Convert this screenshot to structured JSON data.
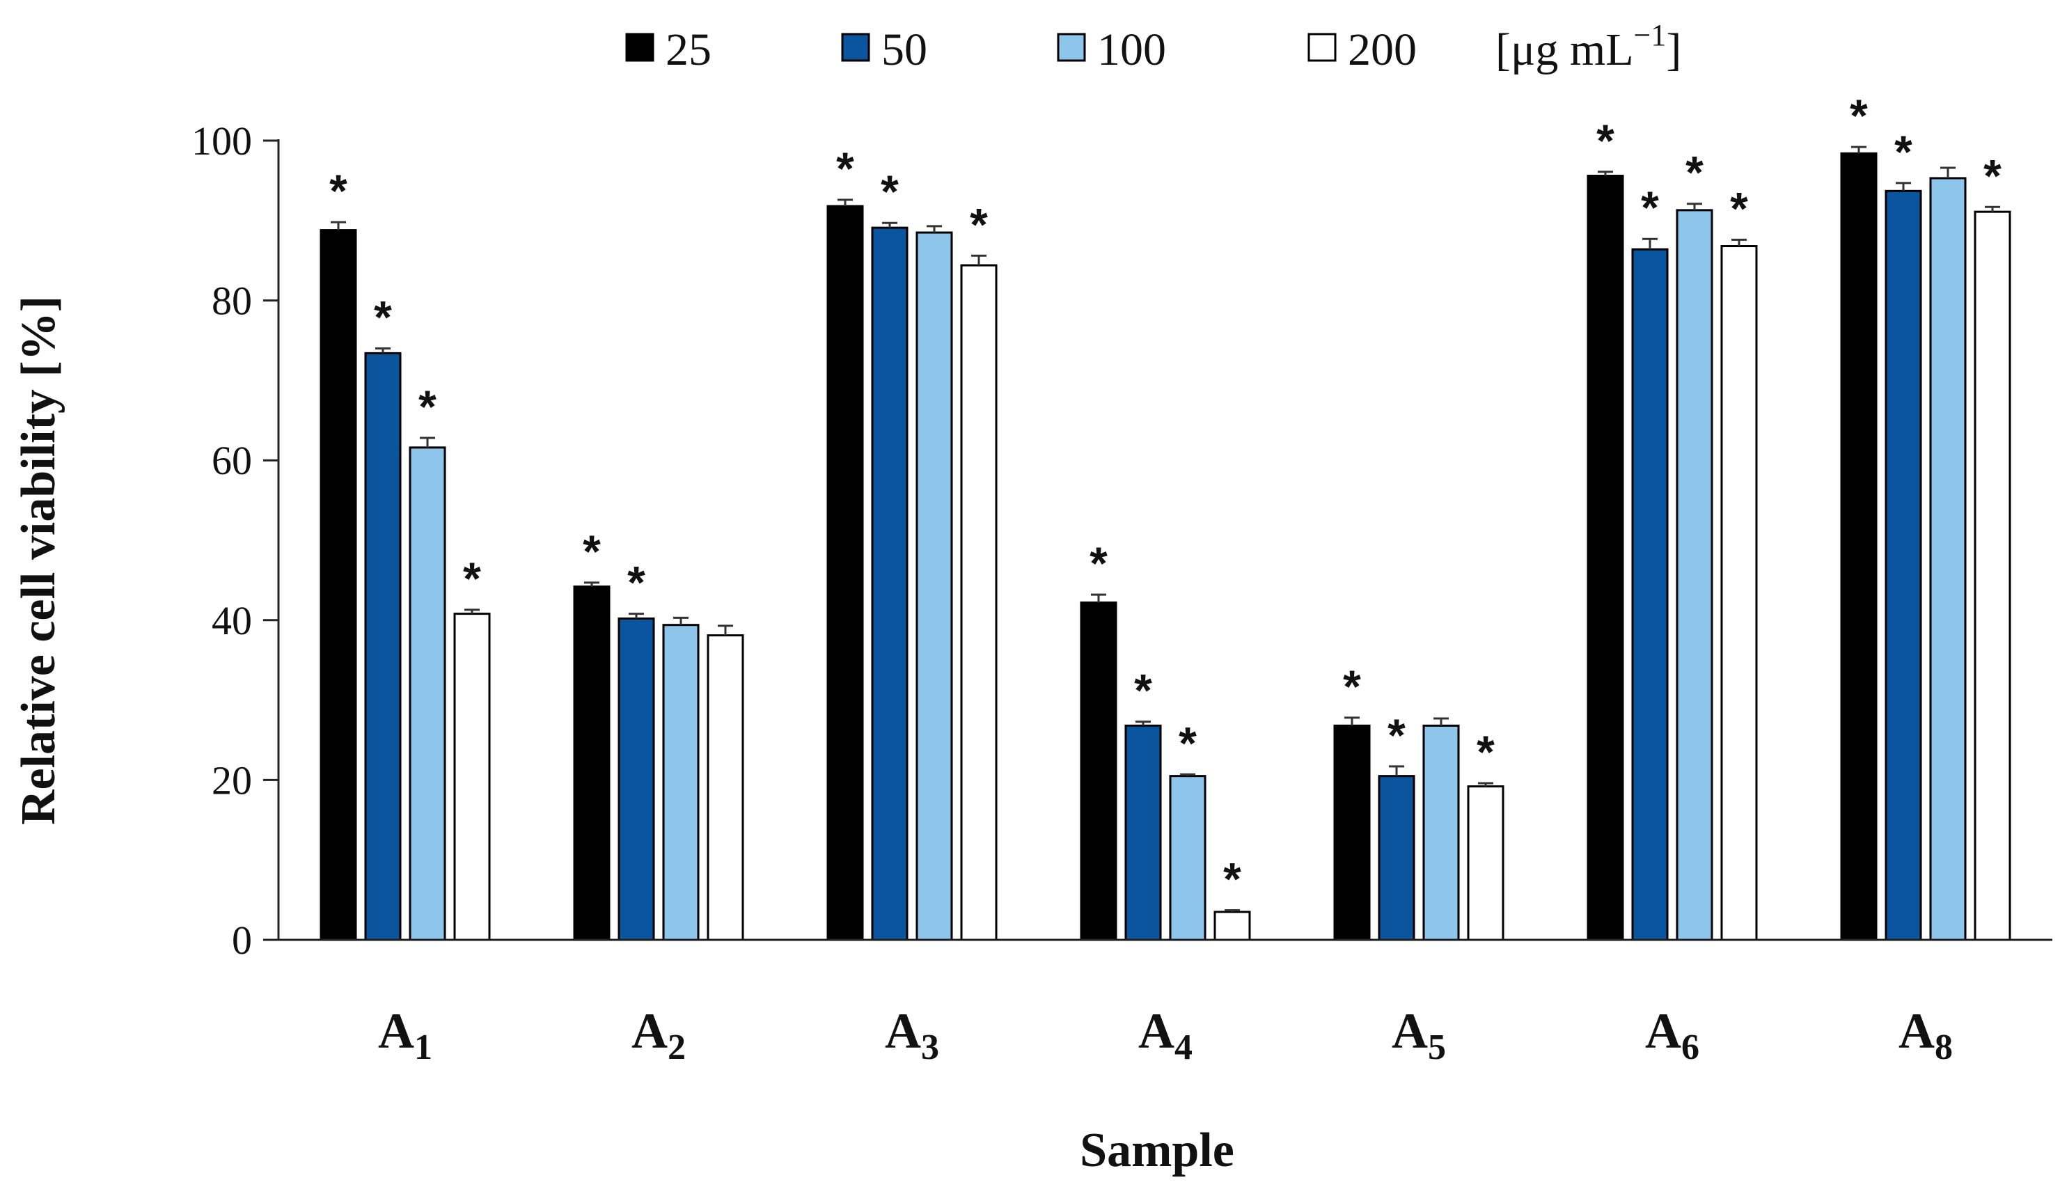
{
  "chart_data": {
    "type": "bar",
    "title": "",
    "xlabel": "Sample",
    "ylabel": "Relative cell viability [%]",
    "ylim": [
      0,
      100
    ],
    "yticks": [
      0,
      20,
      40,
      60,
      80,
      100
    ],
    "ytick_labels": [
      "0",
      "20",
      "40",
      "60",
      "80",
      "100"
    ],
    "categories": [
      {
        "base": "A",
        "sub": "1"
      },
      {
        "base": "A",
        "sub": "2"
      },
      {
        "base": "A",
        "sub": "3"
      },
      {
        "base": "A",
        "sub": "4"
      },
      {
        "base": "A",
        "sub": "5"
      },
      {
        "base": "A",
        "sub": "6"
      },
      {
        "base": "A",
        "sub": "8"
      }
    ],
    "legend_position": "top",
    "legend_unit": {
      "prefix": "[μg mL",
      "sup": "−1",
      "suffix": "]"
    },
    "significance_marker": "*",
    "series": [
      {
        "name": "25",
        "color": "#000000",
        "values": [
          88.8,
          44.2,
          91.8,
          42.2,
          26.8,
          95.6,
          98.4
        ],
        "errors": [
          1.0,
          0.5,
          0.8,
          1.0,
          1.0,
          0.5,
          0.8
        ],
        "significant": [
          true,
          true,
          true,
          true,
          true,
          true,
          true
        ]
      },
      {
        "name": "50",
        "color": "#0b559f",
        "values": [
          73.4,
          40.2,
          89.1,
          26.8,
          20.5,
          86.4,
          93.7
        ],
        "errors": [
          0.6,
          0.6,
          0.6,
          0.5,
          1.2,
          1.3,
          1.0
        ],
        "significant": [
          true,
          true,
          true,
          true,
          true,
          true,
          true
        ]
      },
      {
        "name": "100",
        "color": "#8ec5ea",
        "values": [
          61.6,
          39.4,
          88.5,
          20.5,
          26.8,
          91.3,
          95.3
        ],
        "errors": [
          1.2,
          0.9,
          0.8,
          0.2,
          0.9,
          0.8,
          1.3
        ],
        "significant": [
          true,
          false,
          false,
          true,
          false,
          true,
          false
        ]
      },
      {
        "name": "200",
        "color": "#ffffff",
        "values": [
          40.8,
          38.1,
          84.4,
          3.5,
          19.2,
          86.8,
          91.1
        ],
        "errors": [
          0.5,
          1.2,
          1.2,
          0.2,
          0.4,
          0.8,
          0.6
        ],
        "significant": [
          true,
          false,
          true,
          true,
          true,
          true,
          true
        ]
      }
    ]
  }
}
